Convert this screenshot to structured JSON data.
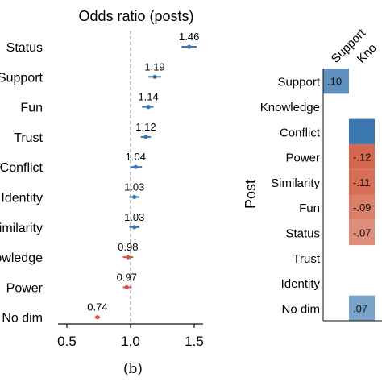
{
  "figure": {
    "caption": "(b)"
  },
  "chart_data": [
    {
      "type": "scatter",
      "subtype": "forest-plot",
      "title": "Odds ratio (posts)",
      "xlabel": "",
      "ylabel": "",
      "xlim": [
        0.5,
        1.5
      ],
      "xticks": [
        0.5,
        1.0,
        1.5
      ],
      "xtick_labels": [
        "0.5",
        "1.0",
        "1.5"
      ],
      "reference_line": 1.0,
      "grid": false,
      "categories": [
        "Status",
        "Support",
        "Fun",
        "Trust",
        "Conflict",
        "Identity",
        "Similarity",
        "Knowledge",
        "Power",
        "No dim"
      ],
      "values": [
        1.46,
        1.19,
        1.14,
        1.12,
        1.04,
        1.03,
        1.03,
        0.98,
        0.97,
        0.74
      ],
      "value_labels": [
        "1.46",
        "1.19",
        "1.14",
        "1.12",
        "1.04",
        "1.03",
        "1.03",
        "0.98",
        "0.97",
        "0.74"
      ],
      "ci_low": [
        1.4,
        1.14,
        1.09,
        1.08,
        1.0,
        0.99,
        0.99,
        0.94,
        0.94,
        0.72
      ],
      "ci_high": [
        1.52,
        1.24,
        1.18,
        1.16,
        1.09,
        1.07,
        1.07,
        1.02,
        1.01,
        0.76
      ],
      "colors": {
        "above": "#3a77b0",
        "below": "#d0583c",
        "reference": "#888888"
      }
    },
    {
      "type": "heatmap",
      "ylabel": "Post",
      "rows": [
        "Support",
        "Knowledge",
        "Conflict",
        "Power",
        "Similarity",
        "Fun",
        "Status",
        "Trust",
        "Identity",
        "No dim"
      ],
      "columns": [
        "Support",
        "Knowledge"
      ],
      "column_labels_visible": [
        "Support",
        "Kno"
      ],
      "cells": [
        {
          "row": "Support",
          "col": "Support",
          "label": ".10",
          "value": 0.1
        },
        {
          "row": "Conflict",
          "col": "Knowledge",
          "label": "",
          "value": 0.15
        },
        {
          "row": "Power",
          "col": "Knowledge",
          "label": "-.12",
          "value": -0.12
        },
        {
          "row": "Similarity",
          "col": "Knowledge",
          "label": "-.11",
          "value": -0.11
        },
        {
          "row": "Fun",
          "col": "Knowledge",
          "label": "-.09",
          "value": -0.09
        },
        {
          "row": "Status",
          "col": "Knowledge",
          "label": "-.07",
          "value": -0.07
        },
        {
          "row": "No dim",
          "col": "Knowledge",
          "label": ".07",
          "value": 0.07
        }
      ],
      "colors": {
        "positive": "#3a77b0",
        "negative": "#d0583c"
      }
    }
  ]
}
